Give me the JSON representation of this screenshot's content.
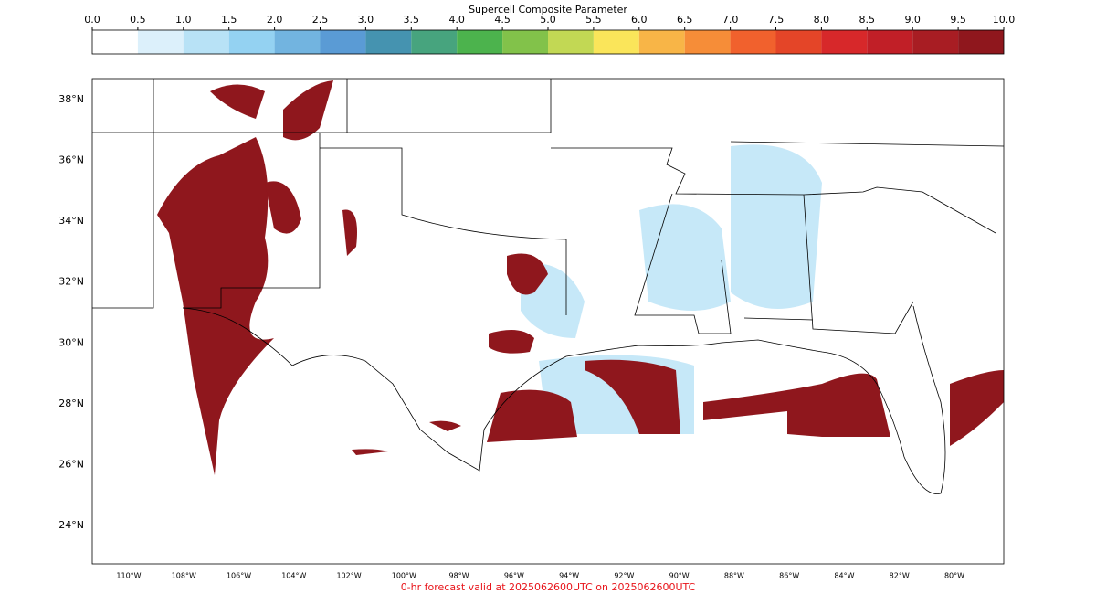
{
  "colorbar": {
    "title": "Supercell Composite Parameter",
    "ticks": [
      {
        "value": 0,
        "label": "0.0"
      },
      {
        "value": 0.5,
        "label": "0.5"
      },
      {
        "value": 1,
        "label": "1.0"
      },
      {
        "value": 1.5,
        "label": "1.5"
      },
      {
        "value": 2,
        "label": "2.0"
      },
      {
        "value": 2.5,
        "label": "2.5"
      },
      {
        "value": 3,
        "label": "3.0"
      },
      {
        "value": 3.5,
        "label": "3.5"
      },
      {
        "value": 4,
        "label": "4.0"
      },
      {
        "value": 4.5,
        "label": "4.5"
      },
      {
        "value": 5,
        "label": "5.0"
      },
      {
        "value": 5.5,
        "label": "5.5"
      },
      {
        "value": 6,
        "label": "6.0"
      },
      {
        "value": 6.5,
        "label": "6.5"
      },
      {
        "value": 7,
        "label": "7.0"
      },
      {
        "value": 7.5,
        "label": "7.5"
      },
      {
        "value": 8,
        "label": "8.0"
      },
      {
        "value": 8.5,
        "label": "8.5"
      },
      {
        "value": 9,
        "label": "9.0"
      },
      {
        "value": 9.5,
        "label": "9.5"
      },
      {
        "value": 10,
        "label": "10.0"
      }
    ],
    "colors": [
      "#ffffff",
      "#dcf0fb",
      "#b8e2f6",
      "#94d2f2",
      "#72b4e0",
      "#5a9bd5",
      "#4593b0",
      "#47a47e",
      "#4cb34d",
      "#82c24a",
      "#c2d854",
      "#fae55a",
      "#f8b547",
      "#f68d38",
      "#f1612d",
      "#e44528",
      "#d7282a",
      "#c11f27",
      "#a81d23",
      "#8f171d"
    ]
  },
  "map": {
    "lat_ticks": [
      {
        "value": 38,
        "label": "38°N"
      },
      {
        "value": 36,
        "label": "36°N"
      },
      {
        "value": 34,
        "label": "34°N"
      },
      {
        "value": 32,
        "label": "32°N"
      },
      {
        "value": 30,
        "label": "30°N"
      },
      {
        "value": 28,
        "label": "28°N"
      },
      {
        "value": 26,
        "label": "26°N"
      },
      {
        "value": 24,
        "label": "24°N"
      }
    ],
    "lon_ticks": [
      {
        "value": -110,
        "label": "110°W"
      },
      {
        "value": -108,
        "label": "108°W"
      },
      {
        "value": -106,
        "label": "106°W"
      },
      {
        "value": -104,
        "label": "104°W"
      },
      {
        "value": -102,
        "label": "102°W"
      },
      {
        "value": -100,
        "label": "100°W"
      },
      {
        "value": -98,
        "label": "98°W"
      },
      {
        "value": -96,
        "label": "96°W"
      },
      {
        "value": -94,
        "label": "94°W"
      },
      {
        "value": -92,
        "label": "92°W"
      },
      {
        "value": -90,
        "label": "90°W"
      },
      {
        "value": -88,
        "label": "88°W"
      },
      {
        "value": -86,
        "label": "86°W"
      },
      {
        "value": -84,
        "label": "84°W"
      },
      {
        "value": -82,
        "label": "82°W"
      },
      {
        "value": -80,
        "label": "80°W"
      }
    ]
  },
  "footer": "0-hr forecast valid at 2025062600UTC on 2025062600UTC"
}
